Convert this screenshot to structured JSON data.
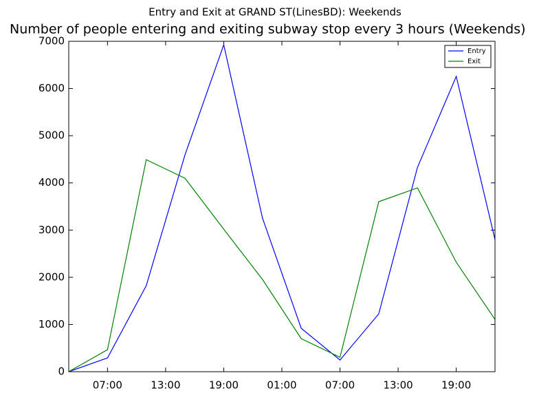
{
  "chart_data": {
    "type": "line",
    "suptitle": "Entry and Exit at GRAND ST(LinesBD): Weekends",
    "title": "Number of people entering and exiting subway stop every 3 hours (Weekends)",
    "x": [
      3,
      7,
      11,
      15,
      19,
      23,
      27,
      31,
      35,
      39,
      43,
      47
    ],
    "series": [
      {
        "name": "Entry",
        "color": "#0000ff",
        "values": [
          0,
          292,
          1823,
          4594,
          6927,
          3252,
          919,
          248,
          1225,
          4331,
          6256,
          2800
        ]
      },
      {
        "name": "Exit",
        "color": "#008000",
        "values": [
          0,
          467,
          4492,
          4098,
          3019,
          1954,
          700,
          306,
          3602,
          3894,
          2319,
          1108
        ]
      }
    ],
    "xlim": [
      3,
      47
    ],
    "xticks": [
      {
        "value": 7,
        "label": "07:00"
      },
      {
        "value": 13,
        "label": "13:00"
      },
      {
        "value": 19,
        "label": "19:00"
      },
      {
        "value": 25,
        "label": "01:00"
      },
      {
        "value": 31,
        "label": "07:00"
      },
      {
        "value": 37,
        "label": "13:00"
      },
      {
        "value": 43,
        "label": "19:00"
      }
    ],
    "ylim": [
      0,
      7000
    ],
    "yticks": [
      0,
      1000,
      2000,
      3000,
      4000,
      5000,
      6000,
      7000
    ],
    "legend": "upper right"
  }
}
